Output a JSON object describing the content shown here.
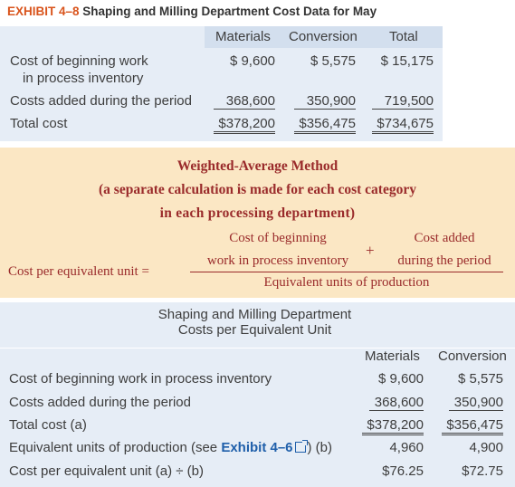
{
  "title": {
    "exhibit": "EXHIBIT 4–8",
    "text": "Shaping and Milling Department Cost Data for May"
  },
  "costdata": {
    "headers": [
      "Materials",
      "Conversion",
      "Total"
    ],
    "rows": [
      {
        "label1": "Cost of beginning work",
        "label2": "in process inventory",
        "v": [
          "$ 9,600",
          "$ 5,575",
          "$ 15,175"
        ]
      },
      {
        "label1": "Costs added during the period",
        "v": [
          "368,600",
          "350,900",
          "719,500"
        ]
      },
      {
        "label1": "Total cost",
        "v": [
          "$378,200",
          "$356,475",
          "$734,675"
        ]
      }
    ]
  },
  "method": {
    "title": "Weighted-Average Method",
    "sub1": "(a separate calculation is made for each cost category",
    "sub2": "in each processing department)",
    "num_a1": "Cost of beginning",
    "num_a2": "work in process inventory",
    "plus": "+",
    "num_b1": "Cost added",
    "num_b2": "during the period",
    "lhs": "Cost per equivalent unit =",
    "den": "Equivalent units of production"
  },
  "costs": {
    "title1": "Shaping and Milling Department",
    "title2": "Costs per Equivalent Unit",
    "headers": [
      "Materials",
      "Conversion"
    ],
    "rows": [
      {
        "label": "Cost of beginning work in process inventory",
        "v": [
          "$ 9,600",
          "$ 5,575"
        ]
      },
      {
        "label": "Costs added during the period",
        "v": [
          "368,600",
          "350,900"
        ]
      },
      {
        "label": "Total cost (a)",
        "v": [
          "$378,200",
          "$356,475"
        ]
      },
      {
        "label_pre": "Equivalent units of production (see ",
        "link": "Exhibit 4–6",
        "label_post": ") (b)",
        "v": [
          "4,960",
          "4,900"
        ]
      },
      {
        "label": "Cost per equivalent unit (a) ÷ (b)",
        "v": [
          "$76.25",
          "$72.75"
        ]
      }
    ]
  }
}
